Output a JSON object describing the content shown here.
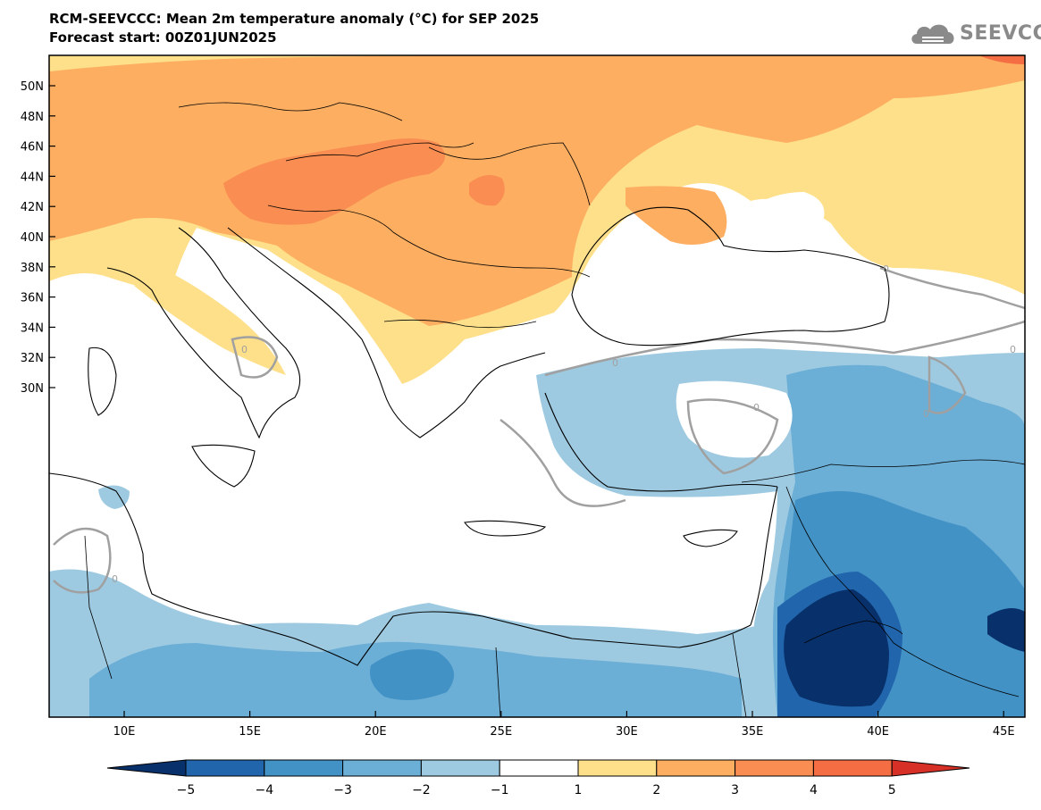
{
  "header": {
    "title": "RCM-SEEVCCC: Mean 2m temperature anomaly (°C) for SEP 2025",
    "subtitle": "Forecast start: 00Z01JUN2025",
    "logo_text": "SEEVCCC"
  },
  "map": {
    "lon_labels": [
      "10E",
      "15E",
      "20E",
      "25E",
      "30E",
      "35E",
      "40E",
      "45E"
    ],
    "lat_labels": [
      "50N",
      "48N",
      "46N",
      "44N",
      "42N",
      "40N",
      "38N",
      "36N",
      "34N",
      "32N",
      "30N"
    ],
    "contour_labels": [
      "0",
      "0",
      "0",
      "0",
      "0",
      "0",
      "0"
    ]
  },
  "colorbar": {
    "tick_labels": [
      "−5",
      "−4",
      "−3",
      "−2",
      "−1",
      "1",
      "2",
      "3",
      "4",
      "5"
    ],
    "colors": [
      "#08306b",
      "#2166ac",
      "#4292c6",
      "#6baed6",
      "#9ecae1",
      "#ffffff",
      "#fee08b",
      "#fdae61",
      "#f98d52",
      "#f46d43",
      "#d73027"
    ]
  },
  "colors": {
    "red2": "#f46d43",
    "orange_dark": "#f98d52",
    "orange": "#fdae61",
    "yellow": "#fee08b",
    "blue_light": "#9ecae1",
    "blue": "#6baed6",
    "blue_mid": "#4292c6",
    "blue_dark": "#2166ac",
    "navy": "#08306b",
    "contour_gray": "#a0a0a0",
    "border": "#000000"
  }
}
